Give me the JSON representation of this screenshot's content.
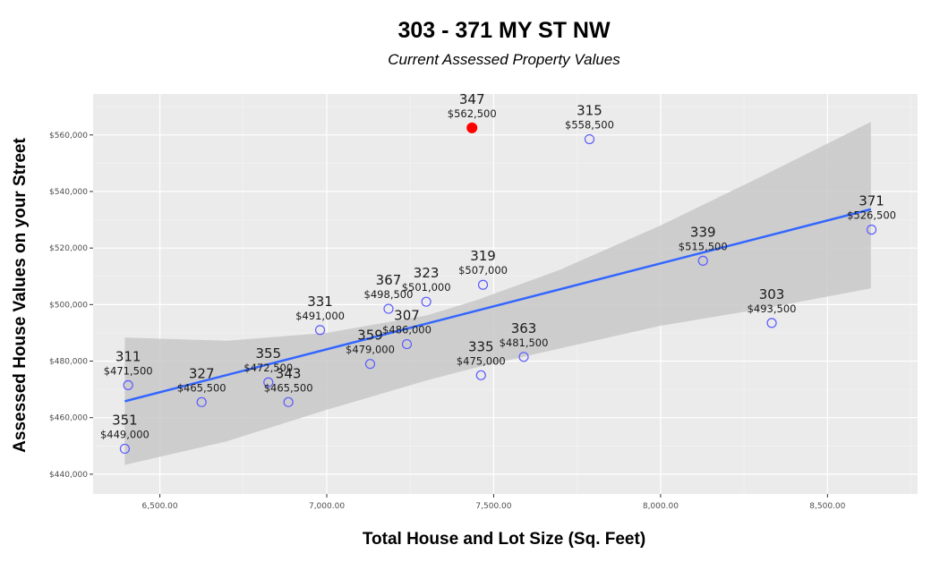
{
  "chart_data": {
    "type": "scatter",
    "title": "303 - 371  MY ST NW",
    "subtitle": "Current Assessed Property Values",
    "xlabel": "Total House and Lot Size (Sq. Feet)",
    "ylabel": "Assessed House Values on your Street",
    "xlim": [
      6300,
      8770
    ],
    "ylim": [
      433000,
      574500
    ],
    "x_ticks": [
      6500,
      7000,
      7500,
      8000,
      8500
    ],
    "x_tick_labels": [
      "6,500.00",
      "7,000.00",
      "7,500.00",
      "8,000.00",
      "8,500.00"
    ],
    "y_ticks": [
      440000,
      460000,
      480000,
      500000,
      520000,
      540000,
      560000
    ],
    "y_tick_labels": [
      "$440,000",
      "$460,000",
      "$480,000",
      "$500,000",
      "$520,000",
      "$540,000",
      "$560,000"
    ],
    "grid": true,
    "background": "#ebebeb",
    "point_color": "#5b5bff",
    "highlight_color": "#ff0000",
    "trend_color": "#3366ff",
    "band_color": "#c8c8c8",
    "trend": {
      "method": "linear",
      "x": [
        6395,
        8630
      ],
      "y": [
        465800,
        533700
      ]
    },
    "confidence_band": {
      "x": [
        6395,
        6700,
        7000,
        7300,
        7450,
        7700,
        8000,
        8300,
        8630
      ],
      "upper": [
        488300,
        487200,
        490000,
        496200,
        501600,
        512400,
        528000,
        545200,
        564600
      ],
      "lower": [
        443300,
        451600,
        462800,
        473200,
        477800,
        484500,
        492500,
        498400,
        505700
      ]
    },
    "points": [
      {
        "label": "311",
        "value_label": "$471,500",
        "x": 6405,
        "y": 471500,
        "highlight": false
      },
      {
        "label": "351",
        "value_label": "$449,000",
        "x": 6395,
        "y": 449000,
        "highlight": false
      },
      {
        "label": "327",
        "value_label": "$465,500",
        "x": 6625,
        "y": 465500,
        "highlight": false
      },
      {
        "label": "355",
        "value_label": "$472,500",
        "x": 6825,
        "y": 472500,
        "highlight": false
      },
      {
        "label": "343",
        "value_label": "$465,500",
        "x": 6885,
        "y": 465500,
        "highlight": false
      },
      {
        "label": "331",
        "value_label": "$491,000",
        "x": 6980,
        "y": 491000,
        "highlight": false
      },
      {
        "label": "359",
        "value_label": "$479,000",
        "x": 7130,
        "y": 479000,
        "highlight": false
      },
      {
        "label": "367",
        "value_label": "$498,500",
        "x": 7185,
        "y": 498500,
        "highlight": false
      },
      {
        "label": "307",
        "value_label": "$486,000",
        "x": 7240,
        "y": 486000,
        "highlight": false
      },
      {
        "label": "323",
        "value_label": "$501,000",
        "x": 7298,
        "y": 501000,
        "highlight": false
      },
      {
        "label": "347",
        "value_label": "$562,500",
        "x": 7435,
        "y": 562500,
        "highlight": true
      },
      {
        "label": "335",
        "value_label": "$475,000",
        "x": 7462,
        "y": 475000,
        "highlight": false
      },
      {
        "label": "319",
        "value_label": "$507,000",
        "x": 7468,
        "y": 507000,
        "highlight": false
      },
      {
        "label": "363",
        "value_label": "$481,500",
        "x": 7590,
        "y": 481500,
        "highlight": false
      },
      {
        "label": "315",
        "value_label": "$558,500",
        "x": 7787,
        "y": 558500,
        "highlight": false
      },
      {
        "label": "339",
        "value_label": "$515,500",
        "x": 8127,
        "y": 515500,
        "highlight": false
      },
      {
        "label": "303",
        "value_label": "$493,500",
        "x": 8333,
        "y": 493500,
        "highlight": false
      },
      {
        "label": "371",
        "value_label": "$526,500",
        "x": 8632,
        "y": 526500,
        "highlight": false
      }
    ]
  }
}
